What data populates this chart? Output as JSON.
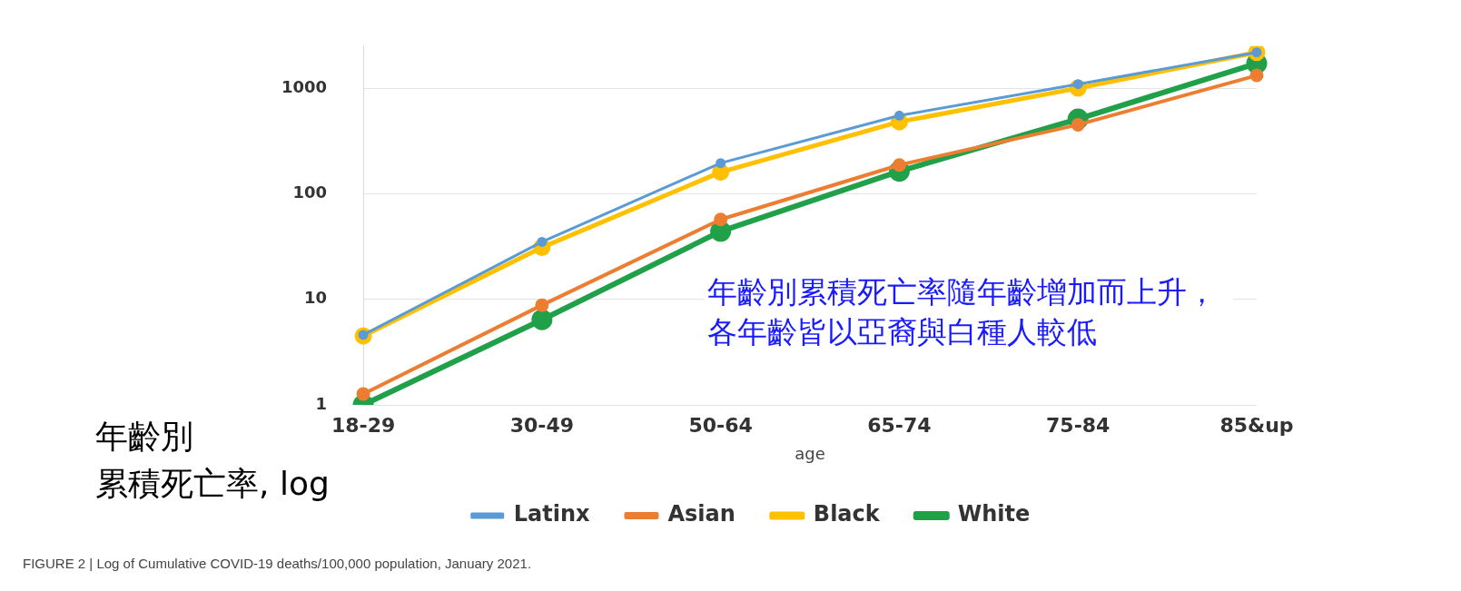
{
  "chart_data": {
    "type": "line",
    "xlabel": "age",
    "categories": [
      "18-29",
      "30-49",
      "50-64",
      "65-74",
      "75-84",
      "85&up"
    ],
    "series": [
      {
        "name": "Latinx",
        "color": "#5b9bd5",
        "values": [
          4.6,
          35,
          195,
          550,
          1090,
          2180
        ]
      },
      {
        "name": "Asian",
        "color": "#ed7d31",
        "values": [
          1.27,
          8.8,
          57,
          187,
          450,
          1320
        ]
      },
      {
        "name": "Black",
        "color": "#ffc000",
        "values": [
          4.5,
          31,
          160,
          480,
          1000,
          2180
        ]
      },
      {
        "name": "White",
        "color": "#21a04a",
        "values": [
          1.0,
          6.4,
          44,
          163,
          510,
          1710
        ]
      }
    ],
    "log": "y",
    "ylim": [
      1,
      2500
    ],
    "yticks": [
      1,
      10,
      100,
      1000
    ],
    "grid": "y",
    "legend": "bottom",
    "marker": "circle",
    "annotations": [
      "年齡別",
      "累積死亡率, log",
      "年齡別累積死亡率隨年齡增加而上升，各年齡皆以亞裔與白種人較低",
      "FIGURE 2 | Log of Cumulative COVID-19 deaths/100,000 population, January 2021."
    ]
  }
}
